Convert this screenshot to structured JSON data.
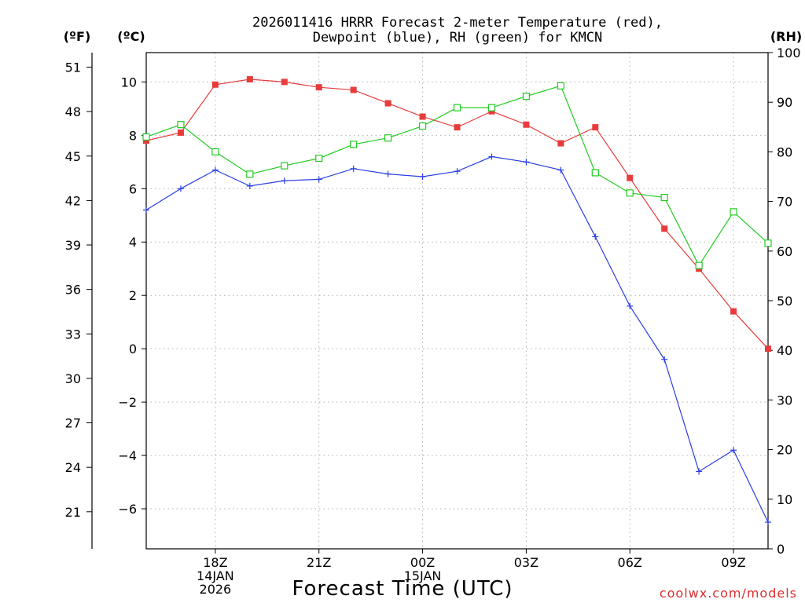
{
  "chart_data": {
    "type": "line",
    "title_line1": "2026011416 HRRR Forecast 2-meter Temperature (red),",
    "title_line2": "Dewpoint (blue), RH (green) for KMCN",
    "xlabel": "Forecast Time (UTC)",
    "watermark": "coolwx.com/models",
    "unit_labels": {
      "fahrenheit": "(ºF)",
      "celsius": "(ºC)",
      "rh": "(RH)"
    },
    "x_hours": [
      16,
      17,
      18,
      19,
      20,
      21,
      22,
      23,
      24,
      25,
      26,
      27,
      28,
      29,
      30,
      31,
      32,
      33,
      34
    ],
    "x_range": [
      16,
      34
    ],
    "x_ticks": [
      {
        "hour": 18,
        "lines": [
          "18Z",
          "14JAN",
          "2026"
        ]
      },
      {
        "hour": 21,
        "lines": [
          "21Z"
        ]
      },
      {
        "hour": 24,
        "lines": [
          "00Z",
          "15JAN"
        ]
      },
      {
        "hour": 27,
        "lines": [
          "03Z"
        ]
      },
      {
        "hour": 30,
        "lines": [
          "06Z"
        ]
      },
      {
        "hour": 33,
        "lines": [
          "09Z"
        ]
      }
    ],
    "celsius_axis": {
      "range": [
        -7.5,
        11.1
      ],
      "ticks": [
        "10",
        "8",
        "6",
        "4",
        "2",
        "0",
        "-2",
        "-4",
        "-6"
      ]
    },
    "fahrenheit_axis": {
      "ticks": [
        "51",
        "48",
        "45",
        "42",
        "39",
        "36",
        "33",
        "30",
        "27",
        "24",
        "21"
      ]
    },
    "rh_axis": {
      "range": [
        0,
        100
      ],
      "ticks": [
        "100",
        "90",
        "80",
        "70",
        "60",
        "50",
        "40",
        "30",
        "20",
        "10",
        "0"
      ]
    },
    "series": [
      {
        "name": "2-meter Temperature",
        "axis": "celsius",
        "color": "#e83c3c",
        "marker": "filled-square",
        "values": [
          7.8,
          8.1,
          9.9,
          10.1,
          10.0,
          9.8,
          9.7,
          9.2,
          8.7,
          8.3,
          8.9,
          8.4,
          7.7,
          8.3,
          6.4,
          4.5,
          3.0,
          1.4,
          0.0
        ]
      },
      {
        "name": "Dewpoint",
        "axis": "celsius",
        "color": "#2a3ee6",
        "marker": "plus",
        "values": [
          5.2,
          6.0,
          6.7,
          6.1,
          6.3,
          6.35,
          6.75,
          6.55,
          6.45,
          6.65,
          7.2,
          7.0,
          6.7,
          4.2,
          1.6,
          -0.4,
          -4.6,
          -3.8,
          -6.5
        ]
      },
      {
        "name": "Relative Humidity",
        "axis": "rh",
        "color": "#22cc22",
        "marker": "open-square",
        "values": [
          83,
          85.5,
          80,
          75.5,
          77.2,
          78.7,
          81.5,
          82.8,
          85.2,
          88.9,
          88.9,
          91.2,
          93.3,
          75.8,
          71.7,
          70.8,
          57.1,
          67.9,
          61.6
        ]
      }
    ]
  }
}
